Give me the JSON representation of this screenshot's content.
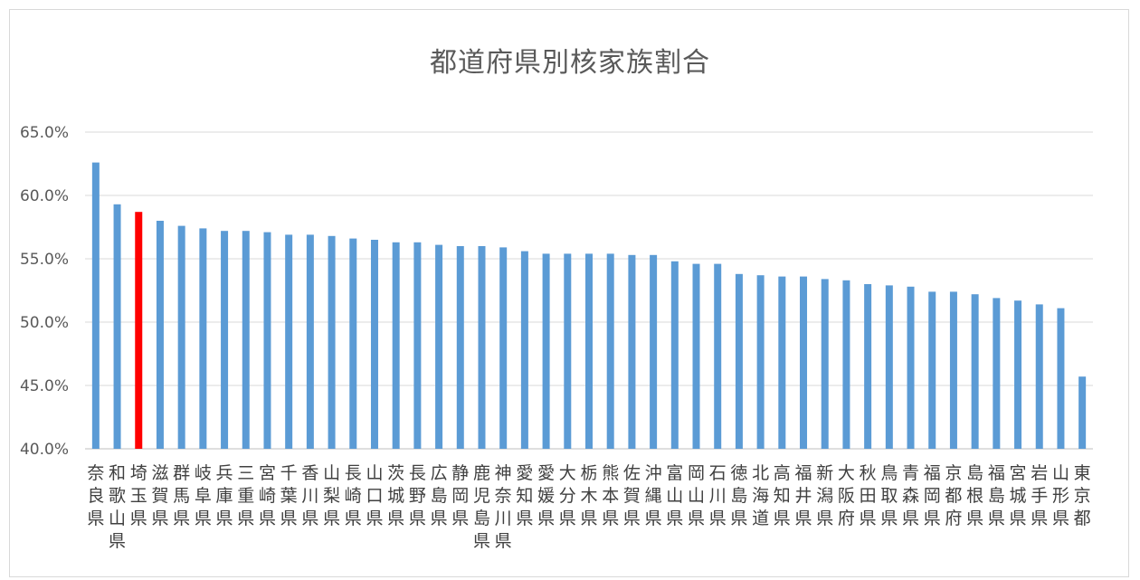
{
  "chart_data": {
    "type": "bar",
    "title": "都道府県別核家族割合",
    "xlabel": "",
    "ylabel": "",
    "ylim": [
      40,
      65
    ],
    "yticks": [
      "40.0%",
      "45.0%",
      "50.0%",
      "55.0%",
      "60.0%",
      "65.0%"
    ],
    "grid": true,
    "legend": "none",
    "colors": {
      "bar": "#5b9bd5",
      "highlight": "#ff0000",
      "grid": "#d9d9d9"
    },
    "highlight_index": 2,
    "categories": [
      "奈良県",
      "和歌山県",
      "埼玉県",
      "滋賀県",
      "群馬県",
      "岐阜県",
      "兵庫県",
      "三重県",
      "宮崎県",
      "千葉県",
      "香川県",
      "山梨県",
      "長崎県",
      "山口県",
      "茨城県",
      "長野県",
      "広島県",
      "静岡県",
      "鹿児島県",
      "神奈川県",
      "愛知県",
      "愛媛県",
      "大分県",
      "栃木県",
      "熊本県",
      "佐賀県",
      "沖縄県",
      "富山県",
      "岡山県",
      "石川県",
      "徳島県",
      "北海道",
      "高知県",
      "福井県",
      "新潟県",
      "大阪府",
      "秋田県",
      "鳥取県",
      "青森県",
      "福岡県",
      "京都府",
      "島根県",
      "福島県",
      "宮城県",
      "岩手県",
      "山形県",
      "東京都"
    ],
    "values": [
      62.6,
      59.3,
      58.7,
      58.0,
      57.6,
      57.4,
      57.2,
      57.2,
      57.1,
      56.9,
      56.9,
      56.8,
      56.6,
      56.5,
      56.3,
      56.3,
      56.1,
      56.0,
      56.0,
      55.9,
      55.6,
      55.4,
      55.4,
      55.4,
      55.4,
      55.3,
      55.3,
      54.8,
      54.6,
      54.6,
      53.8,
      53.7,
      53.6,
      53.6,
      53.4,
      53.3,
      53.0,
      52.9,
      52.8,
      52.4,
      52.4,
      52.2,
      51.9,
      51.7,
      51.4,
      51.1,
      45.7
    ]
  }
}
